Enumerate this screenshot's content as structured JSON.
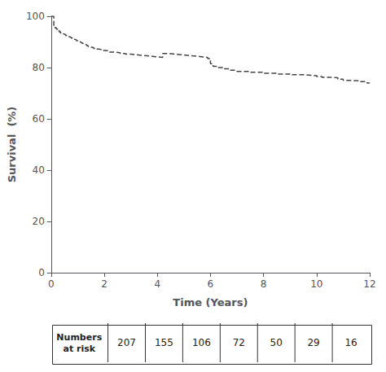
{
  "chart_data": {
    "type": "step",
    "xlabel": "Time (Years)",
    "ylabel": "Survival  (%)",
    "x": [
      0,
      0.05,
      0.1,
      0.15,
      0.2,
      0.25,
      0.3,
      0.35,
      0.4,
      0.45,
      0.5,
      0.55,
      0.6,
      0.65,
      0.7,
      0.75,
      0.8,
      0.85,
      0.9,
      0.95,
      1.0,
      1.05,
      1.1,
      1.15,
      1.2,
      1.25,
      1.3,
      1.35,
      1.4,
      1.45,
      1.5,
      1.6,
      1.7,
      1.8,
      1.9,
      2.0,
      2.2,
      2.4,
      2.6,
      2.8,
      3.0,
      3.2,
      3.4,
      3.6,
      3.8,
      4.0,
      4.2,
      4.4,
      4.6,
      4.8,
      5.0,
      5.2,
      5.4,
      5.6,
      5.8,
      5.9,
      6.0,
      6.05,
      6.1,
      6.3,
      6.5,
      6.7,
      6.9,
      7.0,
      7.5,
      8.0,
      8.5,
      9.0,
      9.5,
      9.8,
      10.0,
      10.2,
      10.5,
      10.8,
      11.0,
      11.3,
      11.6,
      11.9,
      12.0
    ],
    "values": [
      100,
      100,
      96,
      95.5,
      95,
      94.5,
      94,
      93.5,
      93.2,
      93,
      92.8,
      92.5,
      92.2,
      92,
      91.8,
      91.5,
      91.2,
      91,
      90.8,
      90.5,
      90.2,
      90,
      89.8,
      89.5,
      89.2,
      89,
      88.8,
      88.5,
      88.2,
      88,
      87.8,
      87.5,
      87.2,
      87,
      86.7,
      86.5,
      86.0,
      85.8,
      85.5,
      85.2,
      85.0,
      84.8,
      84.6,
      84.4,
      84.2,
      84.0,
      85.5,
      85.3,
      85.1,
      84.9,
      84.7,
      84.5,
      84.3,
      84.1,
      83.9,
      83.5,
      81.5,
      81.0,
      80.5,
      80.0,
      79.5,
      79.0,
      78.8,
      78.5,
      78.2,
      77.8,
      77.5,
      77.2,
      77.0,
      76.8,
      76.5,
      76.2,
      76.0,
      75.5,
      75.0,
      74.8,
      74.5,
      74.0,
      74.0
    ],
    "color": "#444444",
    "line_style": "dashed",
    "xlim": [
      0,
      12
    ],
    "ylim": [
      0,
      100
    ],
    "xticks": [
      0,
      2,
      4,
      6,
      8,
      10,
      12
    ],
    "yticks": [
      0,
      20,
      40,
      60,
      80,
      100
    ],
    "grid": false,
    "table": {
      "label": "Numbers\nat risk",
      "values": [
        207,
        155,
        106,
        72,
        50,
        29,
        16
      ]
    }
  }
}
